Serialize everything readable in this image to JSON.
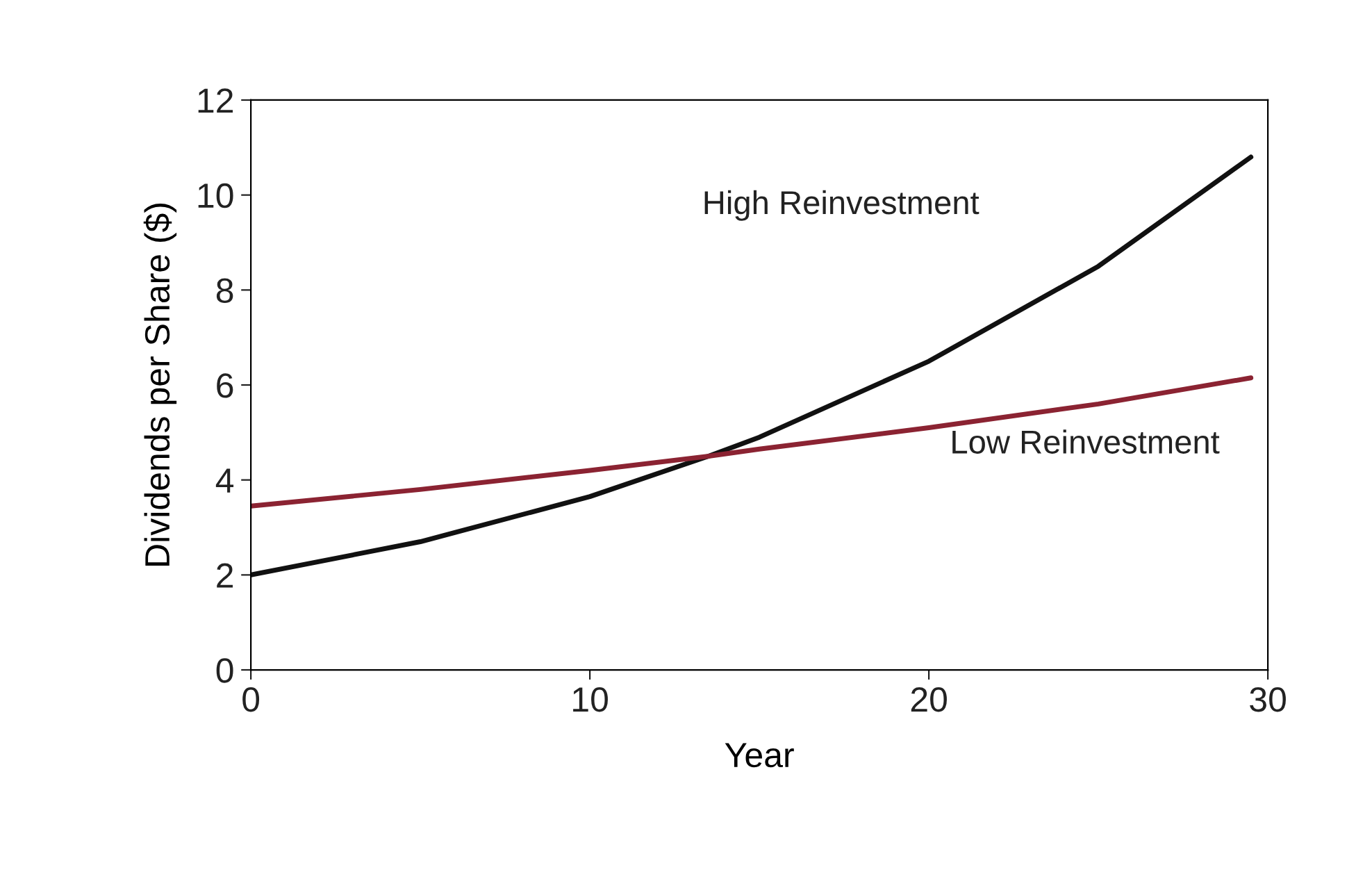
{
  "chart_data": {
    "type": "line",
    "xlabel": "Year",
    "ylabel": "Dividends per Share ($)",
    "xlim": [
      0,
      30
    ],
    "ylim": [
      0,
      12
    ],
    "xticks": [
      0,
      10,
      20,
      30
    ],
    "yticks": [
      0,
      2,
      4,
      6,
      8,
      10,
      12
    ],
    "grid": false,
    "legend": false,
    "x": [
      0,
      5,
      10,
      13.5,
      15,
      20,
      25,
      29.5
    ],
    "series": [
      {
        "name": "High Reinvestment",
        "color": "#111111",
        "values": [
          2.0,
          2.7,
          3.65,
          4.5,
          4.9,
          6.5,
          8.5,
          10.8
        ]
      },
      {
        "name": "Low Reinvestment",
        "color": "#8b2332",
        "values": [
          3.45,
          3.8,
          4.2,
          4.5,
          4.65,
          5.1,
          5.6,
          6.15
        ]
      }
    ]
  }
}
